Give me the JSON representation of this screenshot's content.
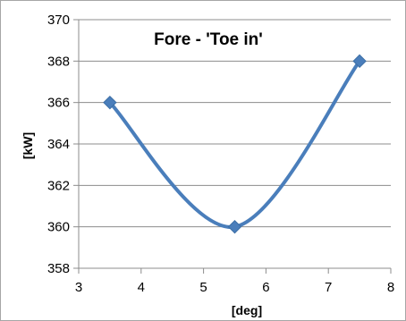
{
  "chart_data": {
    "type": "line",
    "title": "Fore - 'Toe in'",
    "xlabel": "[deg]",
    "ylabel": "[kW]",
    "xlim": [
      3,
      8
    ],
    "ylim": [
      358,
      370
    ],
    "xticks": [
      3,
      4,
      5,
      6,
      7,
      8
    ],
    "yticks": [
      358,
      360,
      362,
      364,
      366,
      368,
      370
    ],
    "grid": "horizontal",
    "smoothed": true,
    "marker": "diamond",
    "series": [
      {
        "x": [
          3.5,
          5.5,
          7.5
        ],
        "y": [
          366,
          360,
          368
        ],
        "color": "#4a7ebb"
      }
    ]
  }
}
